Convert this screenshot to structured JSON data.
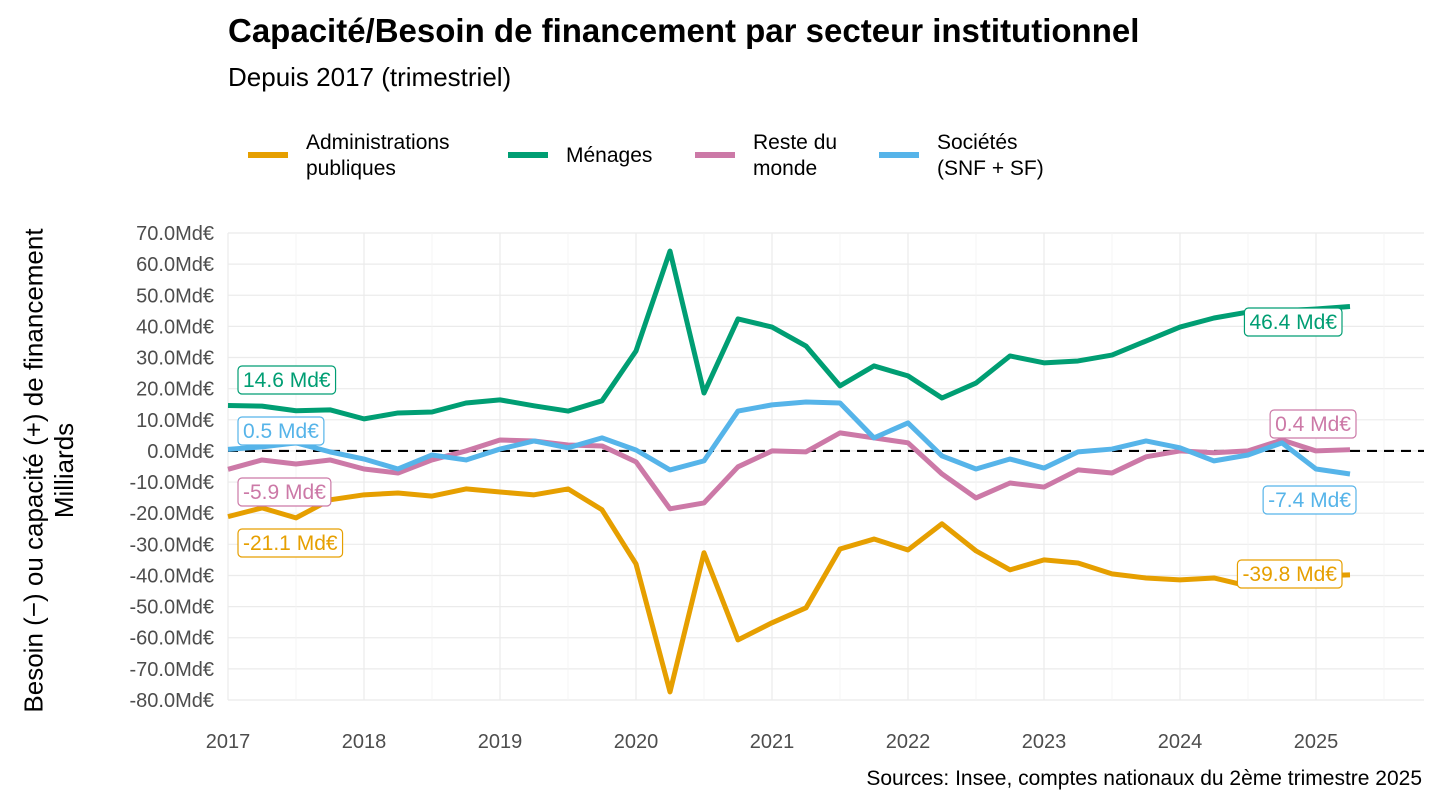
{
  "chart_data": {
    "type": "line",
    "title": "Capacité/Besoin de financement par secteur institutionnel",
    "subtitle": "Depuis 2017 (trimestriel)",
    "ylabel_line1": "Besoin (−) ou capacité (+) de financement",
    "ylabel_line2": "Milliards",
    "xlabel": "",
    "caption": "Sources: Insee, comptes nationaux du 2ème trimestre 2025",
    "x_start": 2017.0,
    "x_step": 0.25,
    "xlim": [
      2017,
      2025.75
    ],
    "ylim": [
      -80,
      70
    ],
    "x_ticks": [
      2017,
      2018,
      2019,
      2020,
      2021,
      2022,
      2023,
      2024,
      2025
    ],
    "x_tick_labels": [
      "2017",
      "2018",
      "2019",
      "2020",
      "2021",
      "2022",
      "2023",
      "2024",
      "2025"
    ],
    "y_ticks": [
      70,
      60,
      50,
      40,
      30,
      20,
      10,
      0,
      -10,
      -20,
      -30,
      -40,
      -50,
      -60,
      -70,
      -80
    ],
    "y_tick_labels": [
      "70.0Md€",
      "60.0Md€",
      "50.0Md€",
      "40.0Md€",
      "30.0Md€",
      "20.0Md€",
      "10.0Md€",
      "0.0Md€",
      "-10.0Md€",
      "-20.0Md€",
      "-30.0Md€",
      "-40.0Md€",
      "-50.0Md€",
      "-60.0Md€",
      "-70.0Md€",
      "-80.0Md€"
    ],
    "grid": true,
    "reference_line": {
      "y": 0,
      "style": "dashed",
      "color": "#000000"
    },
    "legend_position": "top",
    "series": [
      {
        "name": "Administrations publiques",
        "legend_label": "Administrations\npubliques",
        "color": "#E69F00",
        "values": [
          -21.1,
          -18.3,
          -21.5,
          -15.7,
          -14.1,
          -13.5,
          -14.5,
          -12.2,
          -13.2,
          -14.1,
          -12.2,
          -18.9,
          -36.3,
          -77.4,
          -32.7,
          -60.7,
          -55.2,
          -50.4,
          -31.5,
          -28.3,
          -31.8,
          -23.4,
          -32.1,
          -38.2,
          -35.0,
          -36.0,
          -39.5,
          -40.8,
          -41.4,
          -40.8,
          -43.4,
          -42.4,
          -40.1,
          -39.8
        ],
        "start_label": "-21.1 Md€",
        "end_label": "-39.8 Md€"
      },
      {
        "name": "Ménages",
        "legend_label": "Ménages",
        "color": "#009E73",
        "values": [
          14.6,
          14.4,
          12.9,
          13.2,
          10.3,
          12.2,
          12.5,
          15.4,
          16.4,
          14.5,
          12.8,
          16.1,
          32.1,
          64.2,
          18.6,
          42.4,
          39.8,
          33.7,
          20.9,
          27.3,
          24.1,
          17.0,
          21.8,
          30.5,
          28.3,
          28.9,
          30.8,
          35.3,
          39.8,
          42.7,
          44.6,
          45.0,
          45.6,
          46.4
        ],
        "start_label": "14.6 Md€",
        "end_label": "46.4 Md€"
      },
      {
        "name": "Reste du monde",
        "legend_label": "Reste du\nmonde",
        "color": "#CC79A7",
        "values": [
          -5.9,
          -2.9,
          -4.2,
          -2.9,
          -5.8,
          -7.1,
          -2.9,
          0.0,
          3.5,
          3.2,
          1.9,
          1.6,
          -3.5,
          -18.6,
          -16.7,
          -5.1,
          0.0,
          -0.3,
          5.8,
          4.2,
          2.6,
          -7.4,
          -15.1,
          -10.3,
          -11.6,
          -6.1,
          -7.1,
          -1.9,
          0.0,
          -0.6,
          0.0,
          3.5,
          0.0,
          0.4
        ],
        "start_label": "-5.9 Md€",
        "end_label": "0.4 Md€"
      },
      {
        "name": "Sociétés (SNF + SF)",
        "legend_label": "Sociétés\n(SNF + SF)",
        "color": "#56B4E9",
        "values": [
          0.5,
          1.3,
          2.6,
          -0.3,
          -2.6,
          -5.8,
          -1.3,
          -2.9,
          0.6,
          3.2,
          1.0,
          4.2,
          0.3,
          -6.1,
          -3.2,
          12.8,
          14.8,
          15.7,
          15.4,
          4.2,
          9.0,
          -1.6,
          -5.8,
          -2.6,
          -5.5,
          -0.3,
          0.6,
          3.2,
          1.0,
          -3.2,
          -1.3,
          2.6,
          -5.8,
          -7.4
        ],
        "start_label": "0.5 Md€",
        "end_label": "-7.4 Md€"
      }
    ]
  }
}
